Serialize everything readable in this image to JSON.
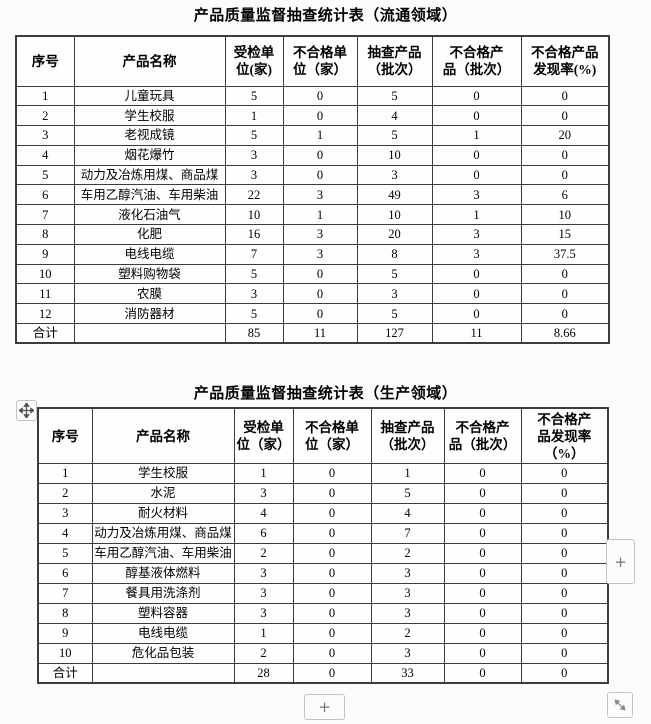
{
  "page": {
    "background": "#fcfcfc"
  },
  "colors": {
    "table_border": "#3c3c3c",
    "text": "#000000",
    "handle_border": "#c3c3c3",
    "handle_symbol": "#777777"
  },
  "tables": [
    {
      "title": "产品质量监督抽查统计表（流通领域）",
      "headers": [
        "序号",
        "产品名称",
        "受检单\n位(家)",
        "不合格单\n位（家）",
        "抽查产品\n（批次）",
        "不合格产\n品（批次）",
        "不合格产品\n发现率(%)"
      ],
      "rows": [
        [
          "1",
          "儿童玩具",
          "5",
          "0",
          "5",
          "0",
          "0"
        ],
        [
          "2",
          "学生校服",
          "1",
          "0",
          "4",
          "0",
          "0"
        ],
        [
          "3",
          "老视成镜",
          "5",
          "1",
          "5",
          "1",
          "20"
        ],
        [
          "4",
          "烟花爆竹",
          "3",
          "0",
          "10",
          "0",
          "0"
        ],
        [
          "5",
          "动力及冶炼用煤、商品煤",
          "3",
          "0",
          "3",
          "0",
          "0"
        ],
        [
          "6",
          "车用乙醇汽油、车用柴油",
          "22",
          "3",
          "49",
          "3",
          "6"
        ],
        [
          "7",
          "液化石油气",
          "10",
          "1",
          "10",
          "1",
          "10"
        ],
        [
          "8",
          "化肥",
          "16",
          "3",
          "20",
          "3",
          "15"
        ],
        [
          "9",
          "电线电缆",
          "7",
          "3",
          "8",
          "3",
          "37.5"
        ],
        [
          "10",
          "塑料购物袋",
          "5",
          "0",
          "5",
          "0",
          "0"
        ],
        [
          "11",
          "农膜",
          "3",
          "0",
          "3",
          "0",
          "0"
        ],
        [
          "12",
          "消防器材",
          "5",
          "0",
          "5",
          "0",
          "0"
        ]
      ],
      "total_row": [
        "合计",
        "",
        "85",
        "11",
        "127",
        "11",
        "8.66"
      ]
    },
    {
      "title": "产品质量监督抽查统计表（生产领域）",
      "headers": [
        "序号",
        "产品名称",
        "受检单\n位（家）",
        "不合格单\n位（家）",
        "抽查产品\n（批次）",
        "不合格产\n品（批次）",
        "不合格产\n品发现率\n（%）"
      ],
      "rows": [
        [
          "1",
          "学生校服",
          "1",
          "0",
          "1",
          "0",
          "0"
        ],
        [
          "2",
          "水泥",
          "3",
          "0",
          "5",
          "0",
          "0"
        ],
        [
          "3",
          "耐火材料",
          "4",
          "0",
          "4",
          "0",
          "0"
        ],
        [
          "4",
          "动力及冶炼用煤、商品煤",
          "6",
          "0",
          "7",
          "0",
          "0"
        ],
        [
          "5",
          "车用乙醇汽油、车用柴油",
          "2",
          "0",
          "2",
          "0",
          "0"
        ],
        [
          "6",
          "醇基液体燃料",
          "3",
          "0",
          "3",
          "0",
          "0"
        ],
        [
          "7",
          "餐具用洗涤剂",
          "3",
          "0",
          "3",
          "0",
          "0"
        ],
        [
          "8",
          "塑料容器",
          "3",
          "0",
          "3",
          "0",
          "0"
        ],
        [
          "9",
          "电线电缆",
          "1",
          "0",
          "2",
          "0",
          "0"
        ],
        [
          "10",
          "危化品包装",
          "2",
          "0",
          "3",
          "0",
          "0"
        ]
      ],
      "total_row": [
        "合计",
        "",
        "28",
        "0",
        "33",
        "0",
        "0"
      ]
    }
  ],
  "controls": {
    "move_handle_icon": "move-cross",
    "add_column_label": "+",
    "add_row_label": "+",
    "resize_handle_icon": "diagonal-resize"
  }
}
